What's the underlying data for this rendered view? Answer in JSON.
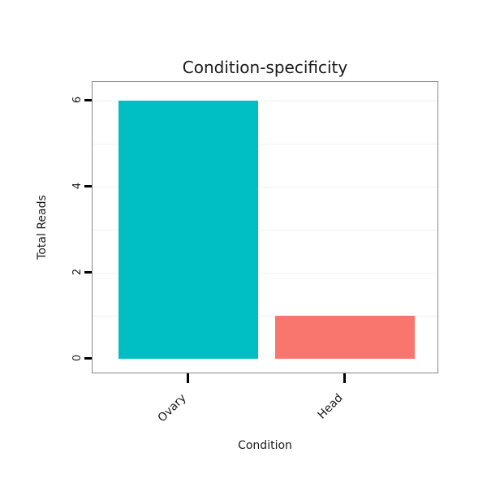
{
  "chart_data": {
    "type": "bar",
    "title": "Condition-specificity",
    "xlabel": "Condition",
    "ylabel": "Total Reads",
    "categories": [
      "Ovary",
      "Head"
    ],
    "values": [
      6,
      1
    ],
    "bar_colors": [
      "#00BFC4",
      "#F8766D"
    ],
    "yticks": [
      0,
      2,
      4,
      6
    ],
    "ylim": [
      0,
      6.4
    ],
    "gridlines": [
      1,
      2,
      3,
      4,
      5,
      6
    ],
    "grid_color": "#f0f0f0",
    "panel_border_color": "#8a8a8a",
    "legend_position": "none"
  }
}
